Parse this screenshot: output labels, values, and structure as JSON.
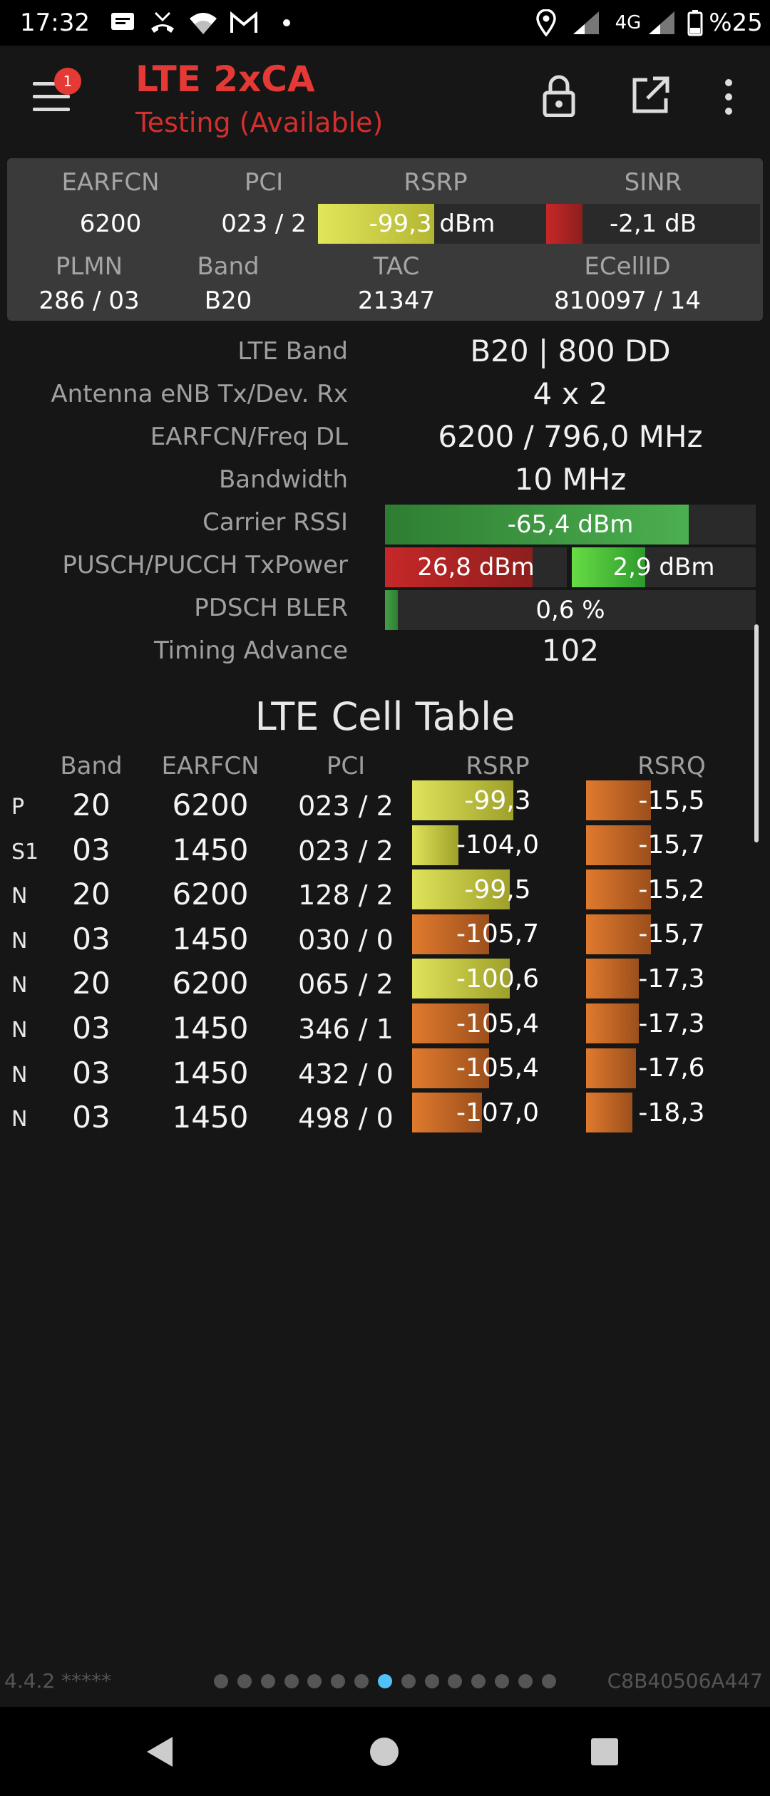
{
  "status_bar": {
    "time": "17:32",
    "network": "4G",
    "battery": "%25",
    "icons": [
      "message-icon",
      "missed-call-icon",
      "wifi-icon",
      "gmail-icon",
      "dot-icon",
      "location-icon",
      "signal-icon",
      "signal-icon",
      "battery-icon"
    ]
  },
  "app_bar": {
    "title": "LTE 2xCA",
    "subtitle": "Testing (Available)",
    "badge_count": "1",
    "title_color": "#e53935"
  },
  "summary": {
    "labels": {
      "earfcn": "EARFCN",
      "pci": "PCI",
      "rsrp": "RSRP",
      "sinr": "SINR",
      "plmn": "PLMN",
      "band": "Band",
      "tac": "TAC",
      "ecellid": "ECellID"
    },
    "earfcn": "6200",
    "pci": "023 / 2",
    "rsrp": "-99,3 dBm",
    "rsrp_fill": 0.51,
    "sinr": "-2,1 dB",
    "sinr_fill": 0.17,
    "plmn": "286 / 03",
    "band": "B20",
    "tac": "21347",
    "ecellid": "810097 / 14"
  },
  "details": [
    {
      "label": "LTE Band",
      "value": "B20 | 800 DD"
    },
    {
      "label": "Antenna eNB Tx/Dev. Rx",
      "value": "4 x 2"
    },
    {
      "label": "EARFCN/Freq DL",
      "value": "6200 / 796,0 MHz"
    },
    {
      "label": "Bandwidth",
      "value": "10 MHz"
    },
    {
      "label": "Carrier RSSI",
      "value": "-65,4 dBm",
      "fill": 0.82
    },
    {
      "label": "PUSCH/PUCCH TxPower",
      "value": "26,8 dBm",
      "value2": "2,9 dBm",
      "fill": 0.81,
      "fill2": 0.4
    },
    {
      "label": "PDSCH BLER",
      "value": "0,6 %",
      "fill": 0.035
    },
    {
      "label": "Timing Advance",
      "value": "102"
    }
  ],
  "cell_table": {
    "title": "LTE Cell Table",
    "headers": [
      "Band",
      "EARFCN",
      "PCI",
      "RSRP",
      "RSRQ"
    ],
    "rows": [
      {
        "type": "P",
        "band": "20",
        "earfcn": "6200",
        "pci": "023 / 2",
        "rsrp": "-99,3",
        "rsrp_fill": 0.59,
        "rsrp_color": "yellow",
        "rsrq": "-15,5",
        "rsrq_fill": 0.38
      },
      {
        "type": "S1",
        "band": "03",
        "earfcn": "1450",
        "pci": "023 / 2",
        "rsrp": "-104,0",
        "rsrp_fill": 0.27,
        "rsrp_color": "yellow",
        "rsrq": "-15,7",
        "rsrq_fill": 0.38
      },
      {
        "type": "N",
        "band": "20",
        "earfcn": "6200",
        "pci": "128 / 2",
        "rsrp": "-99,5",
        "rsrp_fill": 0.57,
        "rsrp_color": "yellow",
        "rsrq": "-15,2",
        "rsrq_fill": 0.38
      },
      {
        "type": "N",
        "band": "03",
        "earfcn": "1450",
        "pci": "030 / 0",
        "rsrp": "-105,7",
        "rsrp_fill": 0.45,
        "rsrp_color": "orange",
        "rsrq": "-15,7",
        "rsrq_fill": 0.38
      },
      {
        "type": "N",
        "band": "20",
        "earfcn": "6200",
        "pci": "065 / 2",
        "rsrp": "-100,6",
        "rsrp_fill": 0.57,
        "rsrp_color": "yellow",
        "rsrq": "-17,3",
        "rsrq_fill": 0.31
      },
      {
        "type": "N",
        "band": "03",
        "earfcn": "1450",
        "pci": "346 / 1",
        "rsrp": "-105,4",
        "rsrp_fill": 0.45,
        "rsrp_color": "orange",
        "rsrq": "-17,3",
        "rsrq_fill": 0.31
      },
      {
        "type": "N",
        "band": "03",
        "earfcn": "1450",
        "pci": "432 / 0",
        "rsrp": "-105,4",
        "rsrp_fill": 0.45,
        "rsrp_color": "orange",
        "rsrq": "-17,6",
        "rsrq_fill": 0.29
      },
      {
        "type": "N",
        "band": "03",
        "earfcn": "1450",
        "pci": "498 / 0",
        "rsrp": "-107,0",
        "rsrp_fill": 0.41,
        "rsrp_color": "orange",
        "rsrq": "-18,3",
        "rsrq_fill": 0.27
      }
    ]
  },
  "footer": {
    "version": "4.4.2 *****",
    "device_id": "C8B40506A447",
    "page_count": 15,
    "active_page": 7
  },
  "nav": {
    "icons": [
      "back-icon",
      "home-icon",
      "recents-icon"
    ]
  },
  "colors": {
    "yellow_bar": "#d4d84a",
    "orange_bar": "#e07a2e",
    "red_bar": "#c62828",
    "green_bar": "#43a047",
    "accent": "#4fc3f7"
  }
}
